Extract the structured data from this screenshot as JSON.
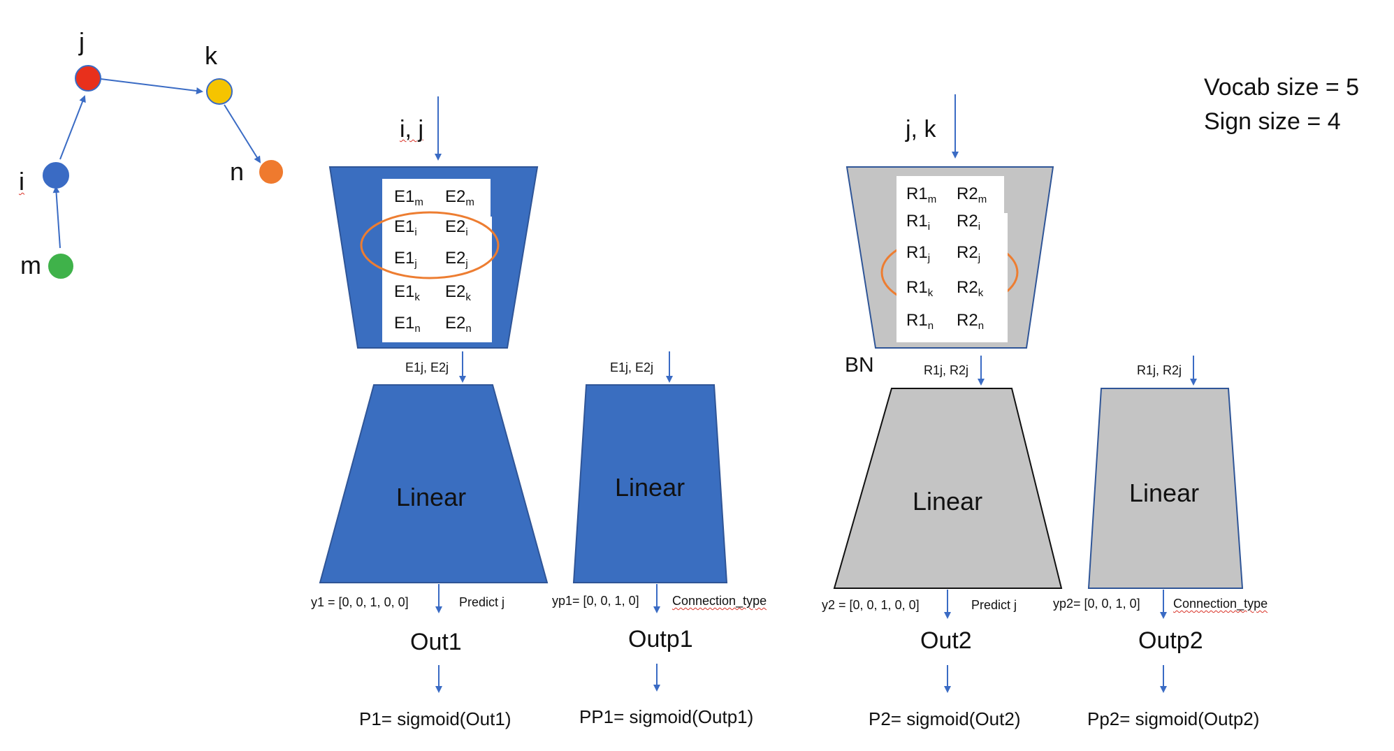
{
  "graph": {
    "nodes": [
      {
        "label": "j",
        "color": "#e8301c"
      },
      {
        "label": "k",
        "color": "#f5c400"
      },
      {
        "label": "i",
        "color": "#3a6bc4"
      },
      {
        "label": "n",
        "color": "#ef7a2e"
      },
      {
        "label": "m",
        "color": "#3fb24a"
      }
    ]
  },
  "info": {
    "vocab_size": "Vocab size = 5",
    "sign_size": "Sign size = 4"
  },
  "colors": {
    "blue_block": "#3a6ec0",
    "gray_block": "#c4c4c4",
    "arrow": "#3a6bc4",
    "highlight_ellipse": "#ed7d31"
  },
  "left_model": {
    "input_label": "i, j",
    "embedding": [
      {
        "a": "E1",
        "a_sub": "m",
        "b": "E2",
        "b_sub": "m"
      },
      {
        "a": "E1",
        "a_sub": "i",
        "b": "E2",
        "b_sub": "i"
      },
      {
        "a": "E1",
        "a_sub": "j",
        "b": "E2",
        "b_sub": "j"
      },
      {
        "a": "E1",
        "a_sub": "k",
        "b": "E2",
        "b_sub": "k"
      },
      {
        "a": "E1",
        "a_sub": "n",
        "b": "E2",
        "b_sub": "n"
      }
    ],
    "branch1": {
      "input": "E1j, E2j",
      "layer": "Linear",
      "target": "y1 = [0, 0, 1, 0, 0]",
      "note": "Predict j",
      "output": "Out1",
      "prob": "P1= sigmoid(Out1)"
    },
    "branch2": {
      "input": "E1j, E2j",
      "layer": "Linear",
      "target": "yp1= [0, 0, 1, 0]",
      "note": "Connection_type",
      "output": "Outp1",
      "prob": "PP1= sigmoid(Outp1)"
    }
  },
  "right_model": {
    "input_label": "j, k",
    "bn_label": "BN",
    "embedding": [
      {
        "a": "R1",
        "a_sub": "m",
        "b": "R2",
        "b_sub": "m"
      },
      {
        "a": "R1",
        "a_sub": "i",
        "b": "R2",
        "b_sub": "i"
      },
      {
        "a": "R1",
        "a_sub": "j",
        "b": "R2",
        "b_sub": "j"
      },
      {
        "a": "R1",
        "a_sub": "k",
        "b": "R2",
        "b_sub": "k"
      },
      {
        "a": "R1",
        "a_sub": "n",
        "b": "R2",
        "b_sub": "n"
      }
    ],
    "branch1": {
      "input": "R1j, R2j",
      "layer": "Linear",
      "target": "y2 = [0, 0, 1, 0, 0]",
      "note": "Predict j",
      "output": "Out2",
      "prob": "P2= sigmoid(Out2)"
    },
    "branch2": {
      "input": "R1j, R2j",
      "layer": "Linear",
      "target": "yp2= [0, 0, 1, 0]",
      "note": "Connection_type",
      "output": "Outp2",
      "prob": "Pp2= sigmoid(Outp2)"
    }
  }
}
